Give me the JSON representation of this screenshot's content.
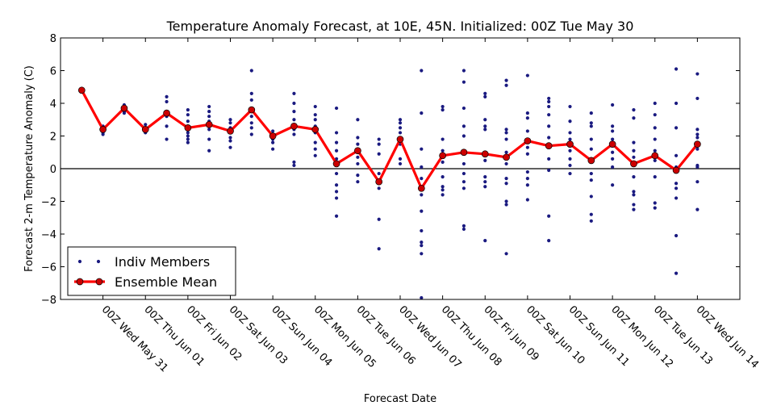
{
  "chart_data": {
    "type": "scatter",
    "title": "Temperature Anomaly Forecast, at 10E, 45N.  Initialized: 00Z Tue May 30",
    "xlabel": "Forecast Date",
    "ylabel": "Forecast 2-m Temperature Anomaly (C)",
    "ylim": [
      -8,
      8
    ],
    "yticks": [
      "8",
      "6",
      "4",
      "2",
      "0",
      "−2",
      "−4",
      "−6",
      "−8"
    ],
    "xlim": [
      -0.5,
      15.5
    ],
    "x_ticks": [
      {
        "x": 0.5,
        "label": "00Z Wed May 31"
      },
      {
        "x": 1.5,
        "label": "00Z Thu Jun 01"
      },
      {
        "x": 2.5,
        "label": "00Z Fri Jun 02"
      },
      {
        "x": 3.5,
        "label": "00Z Sat Jun 03"
      },
      {
        "x": 4.5,
        "label": "00Z Sun Jun 04"
      },
      {
        "x": 5.5,
        "label": "00Z Mon Jun 05"
      },
      {
        "x": 6.5,
        "label": "00Z Tue Jun 06"
      },
      {
        "x": 7.5,
        "label": "00Z Wed Jun 07"
      },
      {
        "x": 8.5,
        "label": "00Z Thu Jun 08"
      },
      {
        "x": 9.5,
        "label": "00Z Fri Jun 09"
      },
      {
        "x": 10.5,
        "label": "00Z Sat Jun 10"
      },
      {
        "x": 11.5,
        "label": "00Z Sun Jun 11"
      },
      {
        "x": 12.5,
        "label": "00Z Mon Jun 12"
      },
      {
        "x": 13.5,
        "label": "00Z Tue Jun 13"
      },
      {
        "x": 14.5,
        "label": "00Z Wed Jun 14"
      }
    ],
    "zero_line": 0,
    "grid": false,
    "legend_position": "lower-left",
    "series": [
      {
        "name": "Indiv Members",
        "type": "scatter",
        "color": "#1a1a80",
        "points": [
          [
            0.0,
            4.9
          ],
          [
            0.0,
            4.8
          ],
          [
            0.0,
            4.7
          ],
          [
            0.5,
            2.6
          ],
          [
            0.5,
            2.4
          ],
          [
            0.5,
            2.3
          ],
          [
            0.5,
            2.2
          ],
          [
            0.5,
            2.1
          ],
          [
            1.0,
            3.9
          ],
          [
            1.0,
            3.8
          ],
          [
            1.0,
            3.6
          ],
          [
            1.0,
            3.5
          ],
          [
            1.0,
            3.4
          ],
          [
            1.5,
            2.7
          ],
          [
            1.5,
            2.5
          ],
          [
            1.5,
            2.4
          ],
          [
            1.5,
            2.3
          ],
          [
            1.5,
            2.2
          ],
          [
            2.0,
            4.4
          ],
          [
            2.0,
            4.1
          ],
          [
            2.0,
            3.5
          ],
          [
            2.0,
            3.2
          ],
          [
            2.0,
            2.6
          ],
          [
            2.0,
            1.8
          ],
          [
            2.5,
            3.6
          ],
          [
            2.5,
            3.3
          ],
          [
            2.5,
            2.9
          ],
          [
            2.5,
            2.6
          ],
          [
            2.5,
            2.2
          ],
          [
            2.5,
            2.0
          ],
          [
            2.5,
            1.8
          ],
          [
            2.5,
            1.6
          ],
          [
            3.0,
            3.8
          ],
          [
            3.0,
            3.5
          ],
          [
            3.0,
            3.2
          ],
          [
            3.0,
            2.9
          ],
          [
            3.0,
            2.4
          ],
          [
            3.0,
            1.8
          ],
          [
            3.0,
            1.1
          ],
          [
            3.5,
            3.0
          ],
          [
            3.5,
            2.8
          ],
          [
            3.5,
            2.5
          ],
          [
            3.5,
            2.2
          ],
          [
            3.5,
            1.9
          ],
          [
            3.5,
            1.7
          ],
          [
            3.5,
            1.3
          ],
          [
            4.0,
            6.0
          ],
          [
            4.0,
            4.6
          ],
          [
            4.0,
            4.2
          ],
          [
            4.0,
            3.7
          ],
          [
            4.0,
            3.2
          ],
          [
            4.0,
            2.8
          ],
          [
            4.0,
            2.5
          ],
          [
            4.0,
            2.1
          ],
          [
            4.5,
            2.3
          ],
          [
            4.5,
            2.1
          ],
          [
            4.5,
            1.9
          ],
          [
            4.5,
            1.8
          ],
          [
            4.5,
            1.6
          ],
          [
            4.5,
            1.2
          ],
          [
            5.0,
            4.6
          ],
          [
            5.0,
            4.0
          ],
          [
            5.0,
            3.5
          ],
          [
            5.0,
            3.0
          ],
          [
            5.0,
            2.7
          ],
          [
            5.0,
            2.4
          ],
          [
            5.0,
            2.1
          ],
          [
            5.0,
            0.4
          ],
          [
            5.0,
            0.2
          ],
          [
            5.5,
            3.8
          ],
          [
            5.5,
            3.3
          ],
          [
            5.5,
            3.0
          ],
          [
            5.5,
            2.6
          ],
          [
            5.5,
            2.2
          ],
          [
            5.5,
            1.6
          ],
          [
            5.5,
            1.2
          ],
          [
            5.5,
            0.8
          ],
          [
            6.0,
            3.7
          ],
          [
            6.0,
            2.2
          ],
          [
            6.0,
            1.6
          ],
          [
            6.0,
            1.1
          ],
          [
            6.0,
            0.6
          ],
          [
            6.0,
            0.3
          ],
          [
            6.0,
            -0.3
          ],
          [
            6.0,
            -1.0
          ],
          [
            6.0,
            -1.4
          ],
          [
            6.0,
            -1.8
          ],
          [
            6.0,
            -2.9
          ],
          [
            6.5,
            3.0
          ],
          [
            6.5,
            1.9
          ],
          [
            6.5,
            1.5
          ],
          [
            6.5,
            1.2
          ],
          [
            6.5,
            0.7
          ],
          [
            6.5,
            0.3
          ],
          [
            6.5,
            -0.4
          ],
          [
            6.5,
            -0.8
          ],
          [
            7.0,
            1.8
          ],
          [
            7.0,
            1.5
          ],
          [
            7.0,
            0.9
          ],
          [
            7.0,
            -0.3
          ],
          [
            7.0,
            -0.9
          ],
          [
            7.0,
            -1.2
          ],
          [
            7.0,
            -3.1
          ],
          [
            7.0,
            -4.9
          ],
          [
            7.5,
            3.0
          ],
          [
            7.5,
            2.8
          ],
          [
            7.5,
            2.5
          ],
          [
            7.5,
            2.2
          ],
          [
            7.5,
            1.8
          ],
          [
            7.5,
            1.5
          ],
          [
            7.5,
            0.6
          ],
          [
            7.5,
            0.3
          ],
          [
            8.0,
            6.0
          ],
          [
            8.0,
            3.4
          ],
          [
            8.0,
            1.2
          ],
          [
            8.0,
            0.1
          ],
          [
            8.0,
            -0.6
          ],
          [
            8.0,
            -1.6
          ],
          [
            8.0,
            -2.6
          ],
          [
            8.0,
            -3.8
          ],
          [
            8.0,
            -4.5
          ],
          [
            8.0,
            -4.7
          ],
          [
            8.0,
            -5.2
          ],
          [
            8.0,
            -7.9
          ],
          [
            8.5,
            3.8
          ],
          [
            8.5,
            3.6
          ],
          [
            8.5,
            1.8
          ],
          [
            8.5,
            1.1
          ],
          [
            8.5,
            0.4
          ],
          [
            8.5,
            -0.5
          ],
          [
            8.5,
            -1.1
          ],
          [
            8.5,
            -1.3
          ],
          [
            8.5,
            -1.6
          ],
          [
            9.0,
            6.0
          ],
          [
            9.0,
            5.3
          ],
          [
            9.0,
            3.7
          ],
          [
            9.0,
            2.6
          ],
          [
            9.0,
            2.0
          ],
          [
            9.0,
            0.9
          ],
          [
            9.0,
            0.3
          ],
          [
            9.0,
            -0.3
          ],
          [
            9.0,
            -0.8
          ],
          [
            9.0,
            -1.2
          ],
          [
            9.0,
            -3.5
          ],
          [
            9.0,
            -3.7
          ],
          [
            9.5,
            4.6
          ],
          [
            9.5,
            4.4
          ],
          [
            9.5,
            3.0
          ],
          [
            9.5,
            2.6
          ],
          [
            9.5,
            2.4
          ],
          [
            9.5,
            1.0
          ],
          [
            9.5,
            0.5
          ],
          [
            9.5,
            -0.5
          ],
          [
            9.5,
            -0.8
          ],
          [
            9.5,
            -1.1
          ],
          [
            9.5,
            -4.4
          ],
          [
            10.0,
            5.4
          ],
          [
            10.0,
            5.1
          ],
          [
            10.0,
            2.4
          ],
          [
            10.0,
            2.2
          ],
          [
            10.0,
            1.8
          ],
          [
            10.0,
            1.0
          ],
          [
            10.0,
            0.3
          ],
          [
            10.0,
            -0.6
          ],
          [
            10.0,
            -0.9
          ],
          [
            10.0,
            -2.0
          ],
          [
            10.0,
            -2.2
          ],
          [
            10.0,
            -5.2
          ],
          [
            10.5,
            5.7
          ],
          [
            10.5,
            3.4
          ],
          [
            10.5,
            3.1
          ],
          [
            10.5,
            2.3
          ],
          [
            10.5,
            1.8
          ],
          [
            10.5,
            1.3
          ],
          [
            10.5,
            0.9
          ],
          [
            10.5,
            -0.2
          ],
          [
            10.5,
            -0.6
          ],
          [
            10.5,
            -1.0
          ],
          [
            10.5,
            -1.9
          ],
          [
            11.0,
            4.3
          ],
          [
            11.0,
            4.1
          ],
          [
            11.0,
            3.8
          ],
          [
            11.0,
            3.3
          ],
          [
            11.0,
            2.6
          ],
          [
            11.0,
            1.9
          ],
          [
            11.0,
            1.3
          ],
          [
            11.0,
            0.6
          ],
          [
            11.0,
            -0.1
          ],
          [
            11.0,
            -2.9
          ],
          [
            11.0,
            -4.4
          ],
          [
            11.5,
            3.8
          ],
          [
            11.5,
            2.9
          ],
          [
            11.5,
            2.2
          ],
          [
            11.5,
            1.8
          ],
          [
            11.5,
            1.4
          ],
          [
            11.5,
            1.1
          ],
          [
            11.5,
            0.6
          ],
          [
            11.5,
            0.2
          ],
          [
            11.5,
            -0.3
          ],
          [
            12.0,
            3.4
          ],
          [
            12.0,
            2.8
          ],
          [
            12.0,
            2.6
          ],
          [
            12.0,
            1.8
          ],
          [
            12.0,
            1.2
          ],
          [
            12.0,
            0.6
          ],
          [
            12.0,
            -0.3
          ],
          [
            12.0,
            -0.7
          ],
          [
            12.0,
            -1.7
          ],
          [
            12.0,
            -2.8
          ],
          [
            12.0,
            -3.2
          ],
          [
            12.5,
            3.9
          ],
          [
            12.5,
            2.6
          ],
          [
            12.5,
            2.3
          ],
          [
            12.5,
            1.8
          ],
          [
            12.5,
            1.4
          ],
          [
            12.5,
            1.0
          ],
          [
            12.5,
            0.6
          ],
          [
            12.5,
            0.1
          ],
          [
            12.5,
            -1.0
          ],
          [
            13.0,
            3.6
          ],
          [
            13.0,
            3.1
          ],
          [
            13.0,
            1.6
          ],
          [
            13.0,
            1.1
          ],
          [
            13.0,
            0.7
          ],
          [
            13.0,
            0.3
          ],
          [
            13.0,
            -0.5
          ],
          [
            13.0,
            -1.4
          ],
          [
            13.0,
            -1.6
          ],
          [
            13.0,
            -2.2
          ],
          [
            13.0,
            -2.5
          ],
          [
            13.5,
            4.0
          ],
          [
            13.5,
            3.3
          ],
          [
            13.5,
            2.5
          ],
          [
            13.5,
            1.8
          ],
          [
            13.5,
            1.1
          ],
          [
            13.5,
            0.5
          ],
          [
            13.5,
            -0.5
          ],
          [
            13.5,
            -2.1
          ],
          [
            13.5,
            -2.4
          ],
          [
            14.0,
            6.1
          ],
          [
            14.0,
            4.0
          ],
          [
            14.0,
            2.5
          ],
          [
            14.0,
            0.8
          ],
          [
            14.0,
            0.1
          ],
          [
            14.0,
            -0.2
          ],
          [
            14.0,
            -0.9
          ],
          [
            14.0,
            -1.2
          ],
          [
            14.0,
            -1.8
          ],
          [
            14.0,
            -4.1
          ],
          [
            14.0,
            -6.4
          ],
          [
            14.5,
            5.8
          ],
          [
            14.5,
            4.3
          ],
          [
            14.5,
            2.4
          ],
          [
            14.5,
            2.1
          ],
          [
            14.5,
            1.9
          ],
          [
            14.5,
            1.2
          ],
          [
            14.5,
            0.2
          ],
          [
            14.5,
            0.1
          ],
          [
            14.5,
            -0.8
          ],
          [
            14.5,
            -2.5
          ]
        ]
      },
      {
        "name": "Ensemble Mean",
        "type": "line",
        "color": "#ff0000",
        "marker_color": "#cc0000",
        "x": [
          0,
          0.5,
          1,
          1.5,
          2,
          2.5,
          3,
          3.5,
          4,
          4.5,
          5,
          5.5,
          6,
          6.5,
          7,
          7.5,
          8,
          8.5,
          9,
          9.5,
          10,
          10.5,
          11,
          11.5,
          12,
          12.5,
          13,
          13.5,
          14,
          14.5
        ],
        "y": [
          4.8,
          2.4,
          3.7,
          2.4,
          3.4,
          2.5,
          2.7,
          2.3,
          3.6,
          2.0,
          2.6,
          2.4,
          0.3,
          1.1,
          -0.8,
          1.8,
          -1.2,
          0.8,
          1.0,
          0.9,
          0.7,
          1.7,
          1.4,
          1.5,
          0.5,
          1.5,
          0.3,
          0.8,
          -0.1,
          1.5
        ]
      }
    ]
  }
}
